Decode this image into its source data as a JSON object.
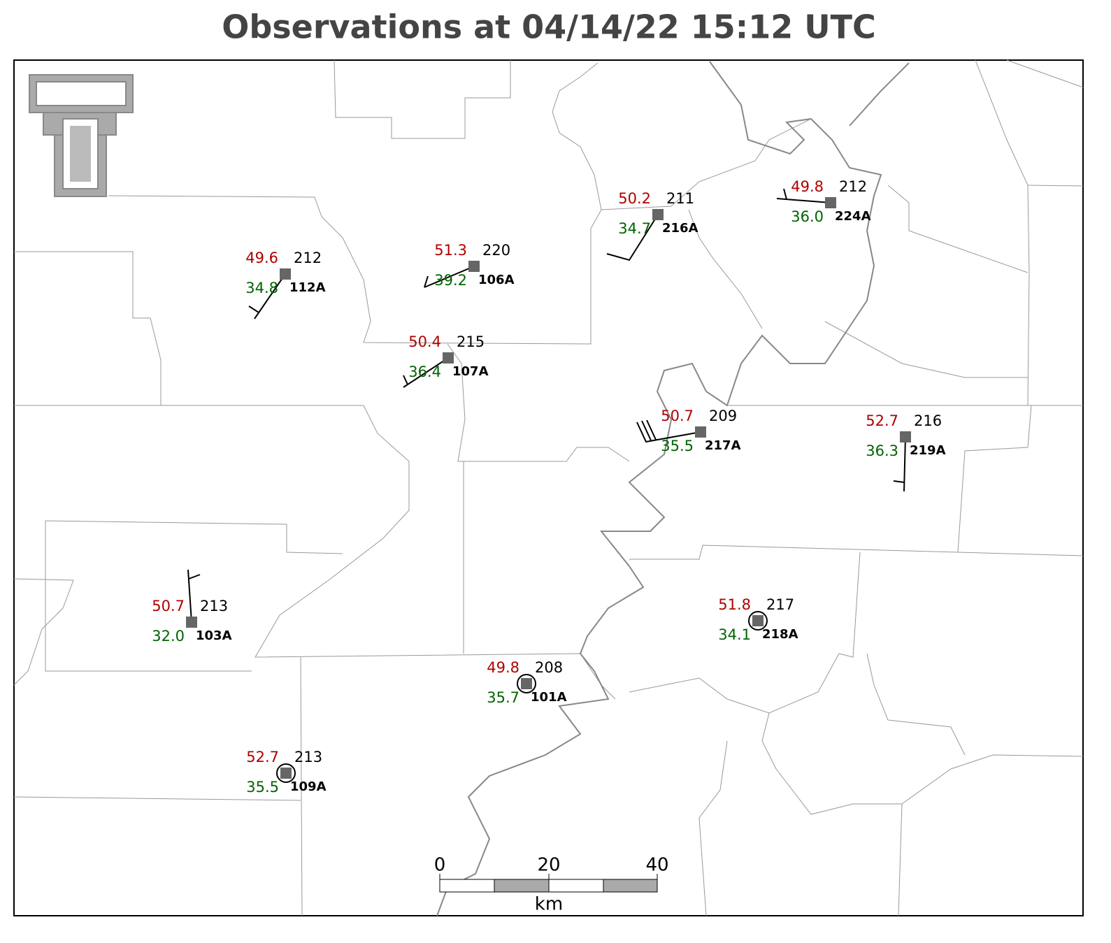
{
  "header": {
    "title": "Observations at 04/14/22 15:12 UTC"
  },
  "stations": [
    {
      "id": "112A",
      "temperature": "49.6",
      "dewpoint": "34.8",
      "pressure": "212"
    },
    {
      "id": "106A",
      "temperature": "51.3",
      "dewpoint": "39.2",
      "pressure": "220"
    },
    {
      "id": "107A",
      "temperature": "50.4",
      "dewpoint": "36.4",
      "pressure": "215"
    },
    {
      "id": "216A",
      "temperature": "50.2",
      "dewpoint": "34.7",
      "pressure": "211"
    },
    {
      "id": "224A",
      "temperature": "49.8",
      "dewpoint": "36.0",
      "pressure": "212"
    },
    {
      "id": "217A",
      "temperature": "50.7",
      "dewpoint": "35.5",
      "pressure": "209"
    },
    {
      "id": "219A",
      "temperature": "52.7",
      "dewpoint": "36.3",
      "pressure": "216"
    },
    {
      "id": "103A",
      "temperature": "50.7",
      "dewpoint": "32.0",
      "pressure": "213"
    },
    {
      "id": "218A",
      "temperature": "51.8",
      "dewpoint": "34.1",
      "pressure": "217"
    },
    {
      "id": "101A",
      "temperature": "49.8",
      "dewpoint": "35.7",
      "pressure": "208"
    },
    {
      "id": "109A",
      "temperature": "52.7",
      "dewpoint": "35.5",
      "pressure": "213"
    }
  ],
  "scale_bar": {
    "labels": [
      "0",
      "20",
      "40"
    ],
    "unit": "km"
  }
}
